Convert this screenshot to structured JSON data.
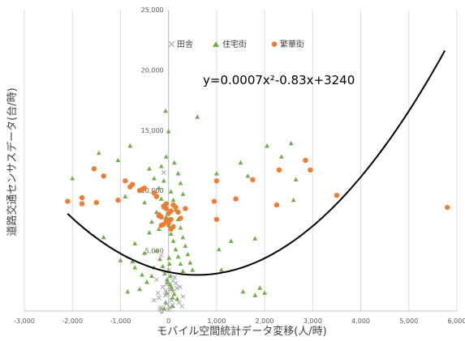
{
  "chart_data": {
    "type": "scatter",
    "title": "",
    "xlabel": "モバイル空間統計データ変移(人/時)",
    "ylabel": "道路交通センサスデータ(台/時)",
    "xlim": [
      -3000,
      6000
    ],
    "ylim": [
      0,
      25000
    ],
    "x_ticks": [
      "-3,000",
      "-2,000",
      "-1,000",
      "0",
      "1,000",
      "2,000",
      "3,000",
      "4,000",
      "5,000",
      "6,000"
    ],
    "y_ticks": [
      "0",
      "5,000",
      "10,000",
      "15,000",
      "20,000",
      "25,000"
    ],
    "legend_position": "top",
    "vertical_gridlines": true,
    "horizontal_gridlines": false,
    "trendline": {
      "type": "polynomial-2",
      "equation_text": "y=0.0007x²-0.83x+3240",
      "a": 0.0007,
      "b": -0.83,
      "c": 3240,
      "color": "#000000"
    },
    "series": [
      {
        "name": "田舎",
        "marker": "x",
        "color": "#a6a6a6",
        "points": [
          [
            0,
            100
          ],
          [
            20,
            300
          ],
          [
            -30,
            600
          ],
          [
            60,
            900
          ],
          [
            -70,
            1300
          ],
          [
            100,
            1600
          ],
          [
            -120,
            2000
          ],
          [
            150,
            2300
          ],
          [
            -200,
            1100
          ],
          [
            220,
            700
          ],
          [
            -250,
            2600
          ],
          [
            280,
            400
          ],
          [
            -180,
            200
          ],
          [
            130,
            2800
          ],
          [
            -90,
            3100
          ],
          [
            40,
            1800
          ],
          [
            -10,
            1400
          ],
          [
            80,
            500
          ],
          [
            -40,
            2200
          ],
          [
            300,
            1200
          ],
          [
            -300,
            900
          ],
          [
            170,
            1900
          ],
          [
            -150,
            300
          ],
          [
            10,
            3400
          ],
          [
            -60,
            1700
          ],
          [
            -100,
            11500
          ],
          [
            -150,
            4600
          ],
          [
            90,
            2500
          ],
          [
            -220,
            1500
          ],
          [
            240,
            2000
          ]
        ]
      },
      {
        "name": "住宅街",
        "marker": "triangle",
        "color": "#70ad47",
        "points": [
          [
            -2000,
            11000
          ],
          [
            -1450,
            13100
          ],
          [
            -1050,
            12500
          ],
          [
            -800,
            13700
          ],
          [
            -900,
            9500
          ],
          [
            -1350,
            6100
          ],
          [
            -1000,
            4200
          ],
          [
            -850,
            1600
          ],
          [
            -700,
            3600
          ],
          [
            -500,
            9000
          ],
          [
            -400,
            11800
          ],
          [
            -300,
            11000
          ],
          [
            -200,
            10200
          ],
          [
            -150,
            9300
          ],
          [
            -100,
            8600
          ],
          [
            -50,
            7800
          ],
          [
            0,
            7100
          ],
          [
            50,
            6400
          ],
          [
            100,
            5800
          ],
          [
            150,
            5100
          ],
          [
            200,
            4500
          ],
          [
            250,
            3900
          ],
          [
            300,
            3300
          ],
          [
            -250,
            5000
          ],
          [
            -180,
            4300
          ],
          [
            -120,
            3700
          ],
          [
            -80,
            3100
          ],
          [
            -30,
            2600
          ],
          [
            30,
            2200
          ],
          [
            70,
            1800
          ],
          [
            120,
            1400
          ],
          [
            180,
            1000
          ],
          [
            -400,
            6500
          ],
          [
            -350,
            7400
          ],
          [
            -250,
            8200
          ],
          [
            -200,
            6800
          ],
          [
            -150,
            12000
          ],
          [
            -100,
            10800
          ],
          [
            -50,
            12800
          ],
          [
            0,
            14900
          ],
          [
            50,
            9900
          ],
          [
            100,
            9200
          ],
          [
            150,
            8400
          ],
          [
            200,
            7600
          ],
          [
            250,
            6900
          ],
          [
            300,
            6100
          ],
          [
            350,
            5400
          ],
          [
            400,
            4700
          ],
          [
            450,
            4000
          ],
          [
            500,
            3400
          ],
          [
            -60,
            16600
          ],
          [
            600,
            16100
          ],
          [
            -300,
            3600
          ],
          [
            -350,
            2900
          ],
          [
            -450,
            2400
          ],
          [
            -600,
            1800
          ],
          [
            300,
            9700
          ],
          [
            250,
            10600
          ],
          [
            200,
            11400
          ],
          [
            120,
            12300
          ],
          [
            -500,
            4800
          ],
          [
            -700,
            5600
          ],
          [
            10,
            4400
          ],
          [
            20,
            3900
          ],
          [
            -10,
            3300
          ],
          [
            40,
            2900
          ],
          [
            -20,
            2400
          ],
          [
            60,
            2000
          ],
          [
            -40,
            1500
          ],
          [
            80,
            1100
          ],
          [
            -60,
            700
          ],
          [
            90,
            400
          ],
          [
            -90,
            200
          ],
          [
            1000,
            11400
          ],
          [
            1050,
            5100
          ],
          [
            1300,
            5800
          ],
          [
            1500,
            12300
          ],
          [
            1650,
            11200
          ],
          [
            1800,
            6000
          ],
          [
            2050,
            13700
          ],
          [
            2350,
            12800
          ],
          [
            2550,
            13900
          ],
          [
            2600,
            9200
          ],
          [
            1550,
            1600
          ],
          [
            1800,
            1300
          ],
          [
            1900,
            1900
          ],
          [
            2000,
            1500
          ],
          [
            2650,
            10900
          ],
          [
            1100,
            3400
          ],
          [
            -750,
            4100
          ],
          [
            -550,
            3000
          ]
        ]
      },
      {
        "name": "繁華街",
        "marker": "circle",
        "color": "#ed7d31",
        "points": [
          [
            -2100,
            9100
          ],
          [
            -1800,
            9400
          ],
          [
            -1800,
            8900
          ],
          [
            -1550,
            11800
          ],
          [
            -1500,
            9000
          ],
          [
            -1350,
            11200
          ],
          [
            -1050,
            9200
          ],
          [
            -900,
            10800
          ],
          [
            -800,
            10300
          ],
          [
            -750,
            10500
          ],
          [
            -600,
            10000
          ],
          [
            -550,
            10100
          ],
          [
            -500,
            10200
          ],
          [
            -300,
            9800
          ],
          [
            -250,
            9500
          ],
          [
            -200,
            8000
          ],
          [
            -150,
            7800
          ],
          [
            -100,
            8700
          ],
          [
            -50,
            8500
          ],
          [
            0,
            8100
          ],
          [
            50,
            8300
          ],
          [
            100,
            8800
          ],
          [
            150,
            8600
          ],
          [
            200,
            8200
          ],
          [
            250,
            7700
          ],
          [
            -50,
            7500
          ],
          [
            0,
            7300
          ],
          [
            -150,
            7100
          ],
          [
            100,
            7000
          ],
          [
            50,
            6800
          ],
          [
            -200,
            7900
          ],
          [
            350,
            8500
          ],
          [
            -100,
            7200
          ],
          [
            50,
            7600
          ],
          [
            -50,
            8900
          ],
          [
            1000,
            10800
          ],
          [
            950,
            9100
          ],
          [
            1400,
            9300
          ],
          [
            1750,
            10900
          ],
          [
            2250,
            8800
          ],
          [
            2300,
            11700
          ],
          [
            2850,
            12500
          ],
          [
            2950,
            11700
          ],
          [
            3500,
            9600
          ],
          [
            5800,
            8600
          ],
          [
            1000,
            7600
          ]
        ]
      }
    ]
  }
}
